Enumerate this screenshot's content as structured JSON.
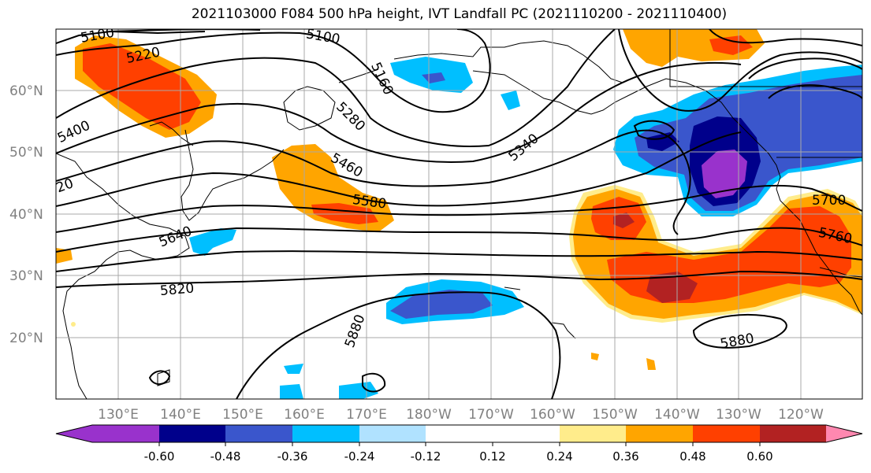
{
  "title": "2021103000 F084 500 hPa height, IVT Landfall PC (2021110200 - 2021110400)",
  "lat_labels": [
    "60°N",
    "50°N",
    "40°N",
    "30°N",
    "20°N"
  ],
  "lon_labels": [
    "130°E",
    "140°E",
    "150°E",
    "160°E",
    "170°E",
    "180°W",
    "170°W",
    "160°W",
    "150°W",
    "140°W",
    "130°W",
    "120°W"
  ],
  "colorbar": {
    "colors": [
      "#9932cc",
      "#00008b",
      "#3a56cc",
      "#00bfff",
      "#b0e2ff",
      "#ffffff",
      "#ffffff",
      "#ffec8b",
      "#ffa500",
      "#ff4000",
      "#b22222",
      "#ff88b0"
    ],
    "tick_labels": [
      "-0.60",
      "-0.48",
      "-0.36",
      "-0.24",
      "-0.12",
      "0.12",
      "0.24",
      "0.36",
      "0.48",
      "0.60"
    ]
  },
  "contour_labels": [
    "5100",
    "5220",
    "5100",
    "5160",
    "5400",
    "5280",
    "5340",
    "5460",
    "20",
    "5580",
    "5640",
    "5700",
    "5760",
    "5820",
    "5880",
    "5880"
  ],
  "map": {
    "ocean_color": "#ffffff",
    "grid_color": "#a9a9a9",
    "contour_color": "#000000"
  }
}
